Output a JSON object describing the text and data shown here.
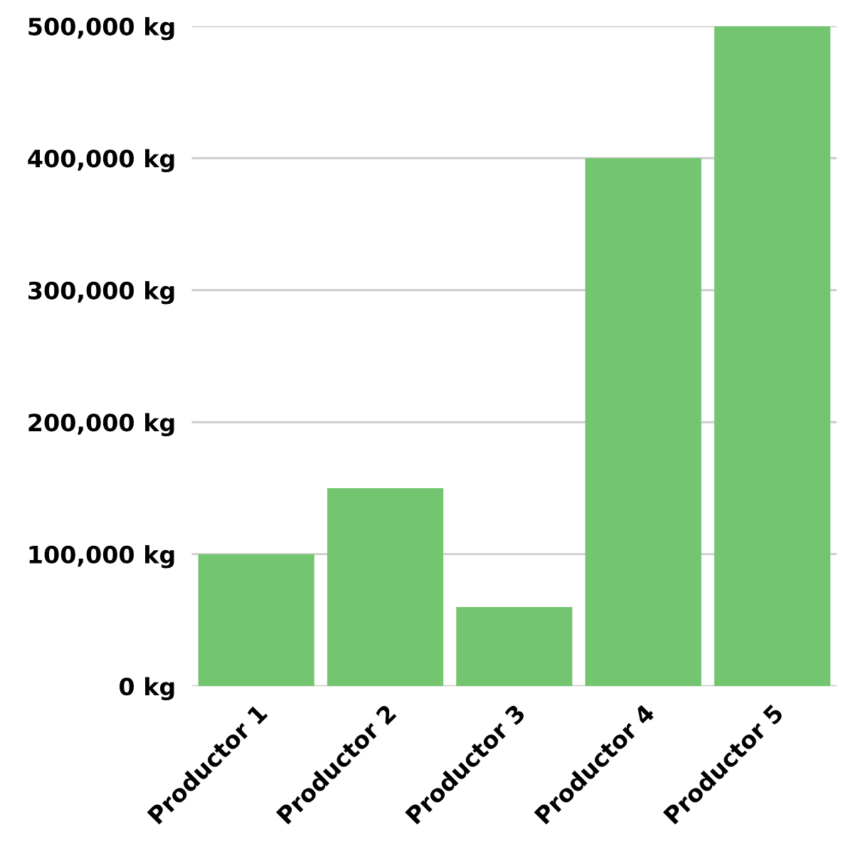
{
  "chart_data": {
    "type": "bar",
    "categories": [
      "Productor 1",
      "Productor 2",
      "Productor 3",
      "Productor 4",
      "Productor 5"
    ],
    "values": [
      100000,
      150000,
      60000,
      400000,
      500000
    ],
    "color": "#73c66f",
    "ylim": [
      0,
      500000
    ],
    "yticks": [
      {
        "value": 0,
        "label": "0 kg"
      },
      {
        "value": 100000,
        "label": "100,000 kg"
      },
      {
        "value": 200000,
        "label": "200,000 kg"
      },
      {
        "value": 300000,
        "label": "300,000 kg"
      },
      {
        "value": 400000,
        "label": "400,000 kg"
      },
      {
        "value": 500000,
        "label": "500,000 kg"
      }
    ],
    "grid": "y"
  }
}
